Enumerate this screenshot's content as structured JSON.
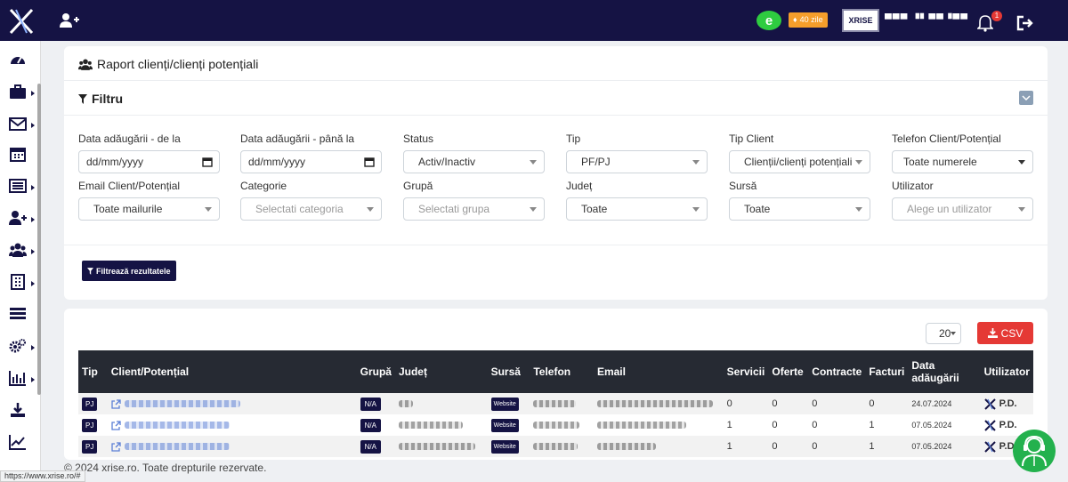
{
  "topbar": {
    "trial_badge": "40 zile",
    "company_logo_text": "XRISE",
    "company_name": "▀▀▀ ▝▘▀▀▝▀▀",
    "notification_count": "1"
  },
  "sidebar": {
    "items": [
      {
        "icon": "dashboard-icon"
      },
      {
        "icon": "briefcase-icon"
      },
      {
        "icon": "envelope-icon"
      },
      {
        "icon": "calendar-icon"
      },
      {
        "icon": "list-icon"
      },
      {
        "icon": "user-plus-icon"
      },
      {
        "icon": "users-icon"
      },
      {
        "icon": "building-icon"
      },
      {
        "icon": "tasks-icon"
      },
      {
        "icon": "cogs-icon"
      },
      {
        "icon": "bar-chart-icon"
      },
      {
        "icon": "download-icon"
      },
      {
        "icon": "line-chart-icon"
      }
    ]
  },
  "report": {
    "title": "Raport clienți/clienți potențiali",
    "filter_title": "Filtru"
  },
  "filters": {
    "date_from": {
      "label": "Data adăugării - de la",
      "value": "dd/mm/yyyy"
    },
    "date_to": {
      "label": "Data adăugării - până la",
      "value": "dd/mm/yyyy"
    },
    "status": {
      "label": "Status",
      "value": "Activ/Inactiv"
    },
    "tip": {
      "label": "Tip",
      "value": "PF/PJ"
    },
    "tip_client": {
      "label": "Tip Client",
      "value": "Clienții/clienți potențiali"
    },
    "telefon": {
      "label": "Telefon Client/Potențial",
      "value": "Toate numerele"
    },
    "email": {
      "label": "Email Client/Potențial",
      "value": "Toate mailurile"
    },
    "categorie": {
      "label": "Categorie",
      "placeholder": "Selectati categoria"
    },
    "grupa": {
      "label": "Grupă",
      "placeholder": "Selectati grupa"
    },
    "judet": {
      "label": "Județ",
      "value": "Toate"
    },
    "sursa": {
      "label": "Sursă",
      "value": "Toate"
    },
    "utilizator": {
      "label": "Utilizator",
      "placeholder": "Alege un utilizator"
    },
    "apply_label": "Filtrează rezultatele"
  },
  "table_controls": {
    "page_size": "20",
    "csv_label": "CSV"
  },
  "table": {
    "headers": [
      "Tip",
      "Client/Potențial",
      "Grupă",
      "Județ",
      "Sursă",
      "Telefon",
      "Email",
      "Servicii",
      "Oferte",
      "Contracte",
      "Facturi",
      "Data adăugării",
      "Utilizator"
    ],
    "rows": [
      {
        "tip": "PJ",
        "grupa": "N/A",
        "sursa": "Website",
        "servicii": "0",
        "oferte": "0",
        "contracte": "0",
        "facturi": "0",
        "data": "24.07.2024",
        "utilizator": "P.D."
      },
      {
        "tip": "PJ",
        "grupa": "N/A",
        "sursa": "Website",
        "servicii": "1",
        "oferte": "0",
        "contracte": "0",
        "facturi": "1",
        "data": "07.05.2024",
        "utilizator": "P.D."
      },
      {
        "tip": "PJ",
        "grupa": "N/A",
        "sursa": "Website",
        "servicii": "1",
        "oferte": "0",
        "contracte": "0",
        "facturi": "1",
        "data": "07.05.2024",
        "utilizator": "P.D."
      }
    ]
  },
  "footer": {
    "copyright": "© 2024 xrise.ro. Toate drepturile rezervate.",
    "status_url": "https://www.xrise.ro/#"
  },
  "colors": {
    "navy": "#151344",
    "csv_red": "#e53935",
    "badge_orange": "#f59e2b",
    "table_header": "#262a33",
    "support_green": "#23b14d"
  }
}
